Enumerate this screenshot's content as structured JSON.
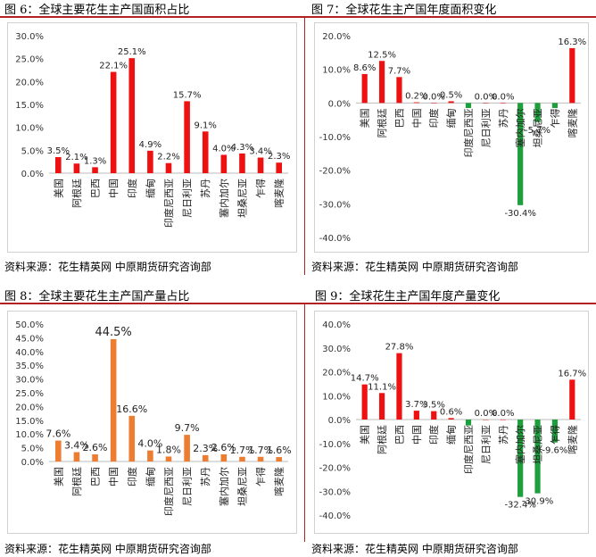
{
  "figures": [
    {
      "title": "图 6：全球主要花生主产国面积占比",
      "source": "资料来源：花生精英网   中原期货研究咨询部"
    },
    {
      "title": "图 7：全球花生主产国年度面积变化",
      "source": "资料来源：花生精英网   中原期货研究咨询部"
    },
    {
      "title": "图 8：全球主要花生主产国产量占比",
      "source": "资料来源：花生精英网   中原期货研究咨询部"
    },
    {
      "title": "图 9：全球花生主产国年度产量变化",
      "source": "资料来源：花生精英网   中原期货研究咨询部"
    }
  ],
  "chart_data": [
    {
      "type": "bar",
      "categories": [
        "美国",
        "阿根廷",
        "巴西",
        "中国",
        "印度",
        "缅甸",
        "印度尼西亚",
        "尼日利亚",
        "苏丹",
        "塞内加尔",
        "坦桑尼亚",
        "乍得",
        "喀麦隆"
      ],
      "values": [
        3.5,
        2.1,
        1.3,
        22.1,
        25.1,
        4.9,
        2.2,
        15.7,
        9.1,
        4.0,
        4.3,
        3.4,
        2.3
      ],
      "labels": [
        "3.5%",
        "2.1%",
        "1.3%",
        "22.1%",
        "25.1%",
        "4.9%",
        "2.2%",
        "15.7%",
        "9.1%",
        "4.0%",
        "4.3%",
        "3.4%",
        "2.3%"
      ],
      "ylim": [
        0,
        30
      ],
      "yticks": [
        "0.0%",
        "5.0%",
        "10.0%",
        "15.0%",
        "20.0%",
        "25.0%",
        "30.0%"
      ],
      "color": "#ee1111",
      "grid": false
    },
    {
      "type": "bar",
      "categories": [
        "美国",
        "阿根廷",
        "巴西",
        "中国",
        "印度",
        "缅甸",
        "印度尼西亚",
        "尼日利亚",
        "苏丹",
        "塞内加尔",
        "坦桑尼亚",
        "乍得",
        "喀麦隆"
      ],
      "values": [
        8.6,
        12.5,
        7.7,
        0.2,
        0.0,
        0.5,
        -1.5,
        0.0,
        0.0,
        -30.4,
        -5.7,
        -1.5,
        16.3
      ],
      "labels": [
        "8.6%",
        "12.5%",
        "7.7%",
        "0.2%",
        "0.0%",
        "0.5%",
        "",
        "0.0%",
        "0.0%",
        "-30.4%",
        "-5.7%",
        "",
        "16.3%"
      ],
      "ylim": [
        -40,
        20
      ],
      "yticks": [
        "-40.0%",
        "-30.0%",
        "-20.0%",
        "-10.0%",
        "0.0%",
        "10.0%",
        "20.0%"
      ],
      "pos_color": "#ee1111",
      "neg_color": "#1f9e3c",
      "grid": false
    },
    {
      "type": "bar",
      "categories": [
        "美国",
        "阿根廷",
        "巴西",
        "中国",
        "印度",
        "缅甸",
        "印度尼西亚",
        "尼日利亚",
        "苏丹",
        "塞内加尔",
        "坦桑尼亚",
        "乍得",
        "喀麦隆"
      ],
      "values": [
        7.6,
        3.4,
        2.6,
        44.5,
        16.6,
        4.0,
        1.8,
        9.7,
        2.3,
        2.6,
        1.7,
        1.7,
        1.6
      ],
      "labels": [
        "7.6%",
        "3.4%",
        "2.6%",
        "44.5%",
        "16.6%",
        "4.0%",
        "1.8%",
        "9.7%",
        "2.3%",
        "2.6%",
        "1.7%",
        "1.7%",
        "1.6%"
      ],
      "ylim": [
        0,
        50
      ],
      "yticks": [
        "0.0%",
        "5.0%",
        "10.0%",
        "15.0%",
        "20.0%",
        "25.0%",
        "30.0%",
        "35.0%",
        "40.0%",
        "45.0%",
        "50.0%"
      ],
      "color": "#ed7d31",
      "grid": false
    },
    {
      "type": "bar",
      "categories": [
        "美国",
        "阿根廷",
        "巴西",
        "中国",
        "印度",
        "缅甸",
        "印度尼西亚",
        "尼日利亚",
        "苏丹",
        "塞内加尔",
        "坦桑尼亚",
        "乍得",
        "喀麦隆"
      ],
      "values": [
        14.7,
        11.1,
        27.8,
        3.7,
        3.5,
        0.6,
        -2.5,
        0.0,
        0.0,
        -32.4,
        -30.9,
        -9.6,
        16.7
      ],
      "labels": [
        "14.7%",
        "11.1%",
        "27.8%",
        "3.7%",
        "3.5%",
        "0.6%",
        "",
        "0.0%",
        "0.0%",
        "-32.4%",
        "-30.9%",
        "-9.6%",
        "16.7%"
      ],
      "ylim": [
        -40,
        40
      ],
      "yticks": [
        "-40.0%",
        "-30.0%",
        "-20.0%",
        "-10.0%",
        "0.0%",
        "10.0%",
        "20.0%",
        "30.0%",
        "40.0%"
      ],
      "pos_color": "#ee1111",
      "neg_color": "#1f9e3c",
      "grid": false
    }
  ]
}
